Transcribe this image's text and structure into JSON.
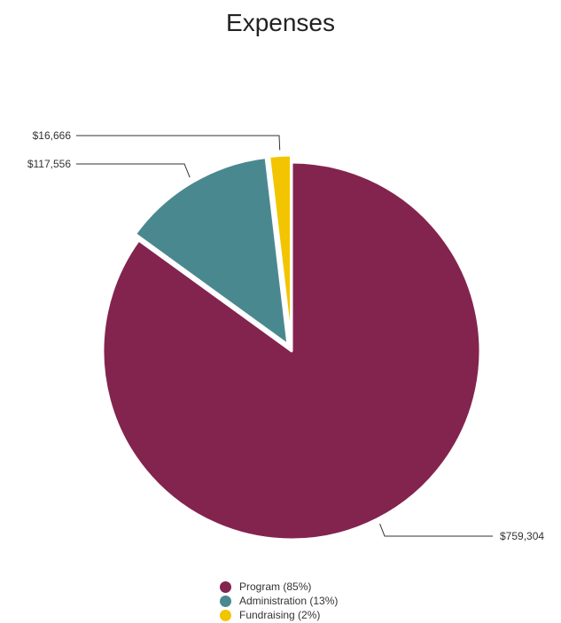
{
  "chart_data": {
    "type": "pie",
    "title": "Expenses",
    "slices": [
      {
        "name": "Program (85%)",
        "value": 759304,
        "value_label": "$759,304",
        "color": "#83244F"
      },
      {
        "name": "Administration (13%)",
        "value": 117556,
        "value_label": "$117,556",
        "color": "#4A8890"
      },
      {
        "name": "Fundraising (2%)",
        "value": 16666,
        "value_label": "$16,666",
        "color": "#F2C500"
      }
    ],
    "legend_position": "bottom"
  }
}
